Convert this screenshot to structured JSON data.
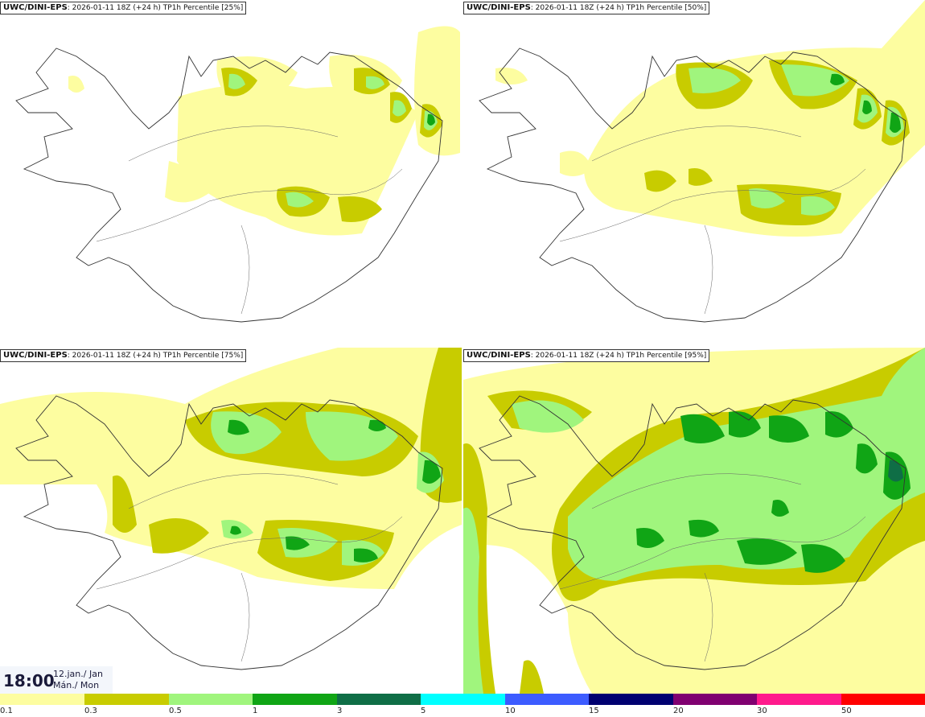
{
  "panels": [
    {
      "model": "UWC/DINI-EPS",
      "run": "2026-01-11 18Z (+24 h)",
      "field": "TP1h Percentile [25%]"
    },
    {
      "model": "UWC/DINI-EPS",
      "run": "2026-01-11 18Z (+24 h)",
      "field": "TP1h Percentile [50%]"
    },
    {
      "model": "UWC/DINI-EPS",
      "run": "2026-01-11 18Z (+24 h)",
      "field": "TP1h Percentile [75%]"
    },
    {
      "model": "UWC/DINI-EPS",
      "run": "2026-01-11 18Z (+24 h)",
      "field": "TP1h Percentile [95%]"
    }
  ],
  "valid_time": {
    "time": "18:00",
    "date_line1": "12.jan./ Jan",
    "date_line2": "Mán./ Mon"
  },
  "legend": {
    "labels": [
      "0.1",
      "0.3",
      "0.5",
      "1",
      "3",
      "5",
      "10",
      "15",
      "20",
      "30",
      "50"
    ],
    "colors": [
      "#fdfda0",
      "#c8cc00",
      "#a0f57d",
      "#10a515",
      "#0f6e46",
      "#00ffff",
      "#3d5cff",
      "#000070",
      "#800070",
      "#ff1a8c",
      "#ff0000"
    ]
  }
}
